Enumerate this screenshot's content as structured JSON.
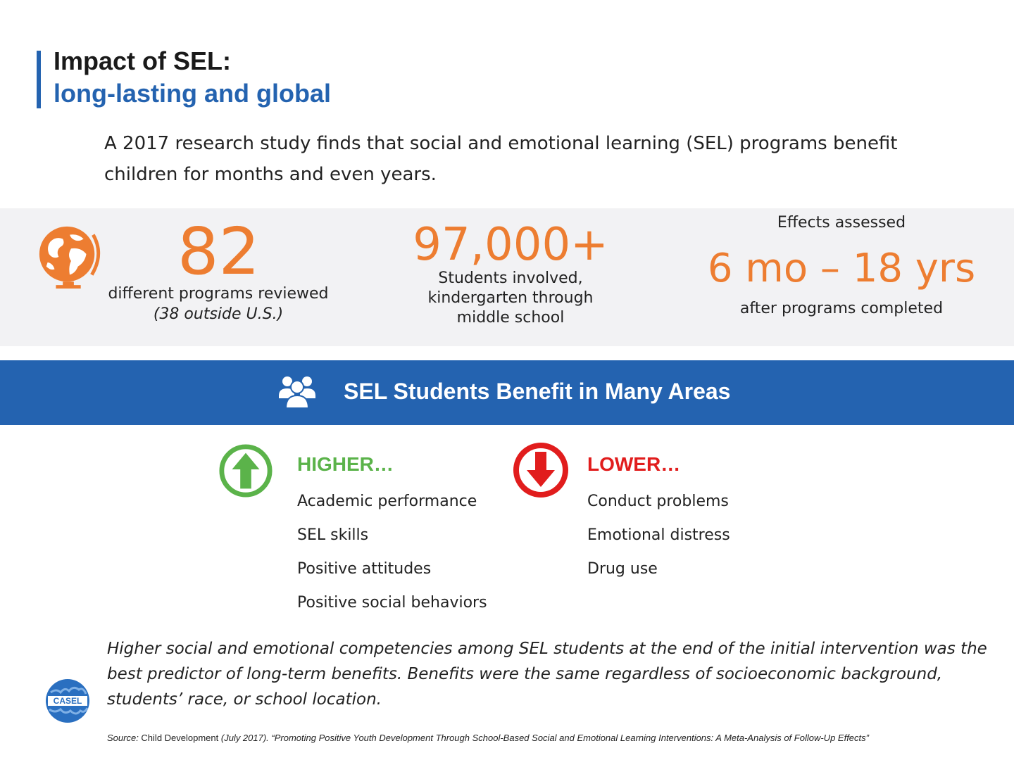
{
  "header": {
    "title_line1": "Impact of SEL:",
    "title_line2": "long-lasting and global"
  },
  "intro": {
    "text": "A 2017 research study finds that social and emotional learning (SEL) programs benefit children for months and even years."
  },
  "stats": {
    "programs": {
      "value": "82",
      "label": "different programs reviewed",
      "sublabel": "(38 outside U.S.)",
      "icon": "globe-icon"
    },
    "students": {
      "value": "97,000+",
      "label_line1": "Students involved,",
      "label_line2": "kindergarten through",
      "label_line3": "middle school"
    },
    "effects": {
      "heading": "Effects assessed",
      "value": "6 mo – 18 yrs",
      "sublabel": "after programs completed"
    }
  },
  "banner": {
    "title": "SEL Students Benefit in Many Areas",
    "icon": "people-icon"
  },
  "higher": {
    "heading": "HIGHER…",
    "icon": "arrow-up-icon",
    "items": [
      "Academic performance",
      "SEL skills",
      "Positive attitudes",
      "Positive social behaviors"
    ]
  },
  "lower": {
    "heading": "LOWER…",
    "icon": "arrow-down-icon",
    "items": [
      "Conduct problems",
      "Emotional distress",
      "Drug use"
    ]
  },
  "summary": {
    "text": "Higher social and emotional competencies among SEL students at the end of the initial intervention was the best predictor of long-term benefits.  Benefits were the same regardless of socioeconomic background, students’ race, or school location."
  },
  "logo": {
    "text": "CASEL"
  },
  "source": {
    "prefix": "Source:  ",
    "journal": "Child Development",
    "rest": " (July 2017). “Promoting Positive Youth Development Through School-Based Social and Emotional Learning Interventions: A Meta-Analysis of Follow-Up Effects”"
  },
  "colors": {
    "accent_blue": "#2463b0",
    "stat_orange": "#ed7d31",
    "higher_green": "#5bb34a",
    "lower_red": "#e11d1d",
    "band_gray": "#f2f2f4"
  }
}
